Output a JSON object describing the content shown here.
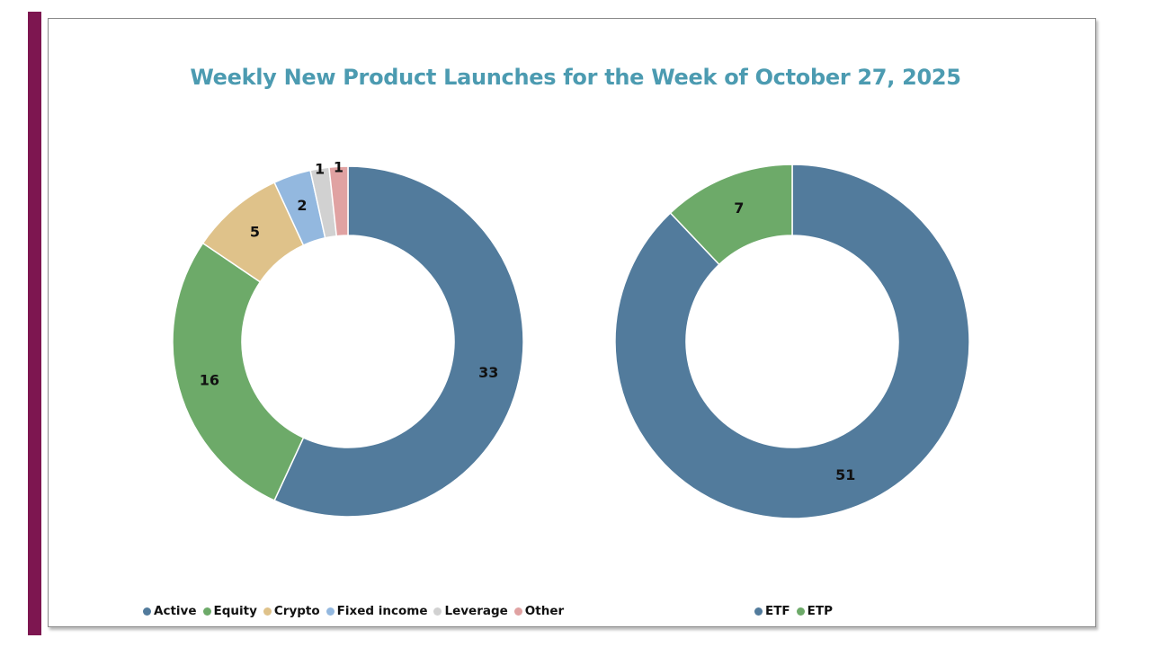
{
  "chart_data": {
    "type": "donut",
    "title": "Weekly New Product Launches for the Week of October 27, 2025",
    "colors": {
      "accent_bar": "#7d1650",
      "title": "#4c9bb1"
    },
    "charts": [
      {
        "id": "category",
        "type": "donut",
        "labels": [
          "Active",
          "Equity",
          "Crypto",
          "Fixed income",
          "Leverage",
          "Other"
        ],
        "values": [
          33,
          16,
          5,
          2,
          1,
          1
        ],
        "colors": [
          "#527b9c",
          "#6daa69",
          "#dfc28a",
          "#93b8df",
          "#d1d1d1",
          "#e0a2a2"
        ],
        "legend_position": "bottom"
      },
      {
        "id": "structure",
        "type": "donut",
        "labels": [
          "ETF",
          "ETP"
        ],
        "values": [
          51,
          7
        ],
        "colors": [
          "#527b9c",
          "#6daa69"
        ],
        "legend_position": "bottom"
      }
    ]
  }
}
